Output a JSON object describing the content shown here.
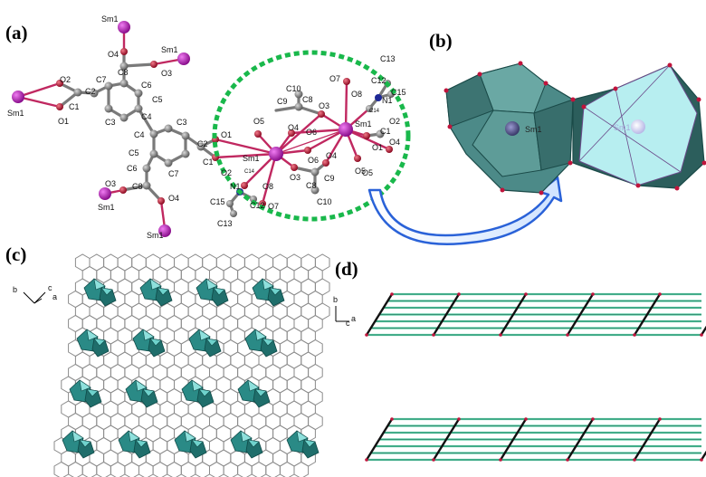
{
  "panels": {
    "a": "(a)",
    "b": "(b)",
    "c": "(c)",
    "d": "(d)"
  },
  "panel_a": {
    "atoms": {
      "sm_top": "Sm1",
      "sm_top_right": "Sm1",
      "sm_left": "Sm1",
      "sm_bottom_left": "Sm1",
      "sm_bottom": "Sm1",
      "sm_center_left": "Sm1",
      "sm_center_right": "Sm1",
      "o4_top": "O4",
      "c8_top": "C8",
      "o3_top": "O3",
      "c7_top": "C7",
      "c6_top": "C6",
      "o2_left": "O2",
      "c2_left": "C2",
      "c1_left": "C1",
      "o1_left": "O1",
      "c5_top": "C5",
      "c4_top": "C4",
      "c3_top": "C3",
      "c3_mid": "C3",
      "c4_mid": "C4",
      "c2_mid": "C2",
      "c5_mid": "C5",
      "c6_mid": "C6",
      "c7_mid": "C7",
      "c8_mid": "C8",
      "o3_mid": "O3",
      "o4_mid": "O4",
      "c1_mid": "C1",
      "o1_mid": "O1",
      "o2_mid": "O2",
      "o1_center": "O1",
      "o2_center": "O2",
      "n1_left": "N1",
      "c12_left": "C12",
      "c14_left": "C14",
      "c15_left": "C15",
      "c13_left": "C13",
      "o8_left": "O8",
      "o7_left": "O7",
      "o3_center": "O3",
      "o6_center": "O6",
      "c8_center": "C8",
      "c9_center": "C9",
      "c10_center": "C10",
      "o4_center": "O4",
      "o5_center": "O5",
      "c9_upper": "C9",
      "c8_upper": "C8",
      "c10_upper": "C10",
      "o5_upper": "O5",
      "o4_upper": "O4",
      "o6_upper": "O6",
      "o3_upper": "O3",
      "o7_right": "O7",
      "o8_right": "O8",
      "c13_right": "C13",
      "c12_right": "C12",
      "c15_right": "C15",
      "n1_right": "N1",
      "c14_right": "C14",
      "o2_right": "O2",
      "c1_right": "C1",
      "o1_right": "O1",
      "o4_right": "O4",
      "o5_right": "O5"
    }
  },
  "panel_b": {
    "sm_left": "Sm1",
    "sm_right": "Sm1"
  },
  "panel_c": {
    "axis_b": "b",
    "axis_c": "c",
    "axis_a": "a"
  },
  "panel_d": {
    "axis_b": "b",
    "axis_c": "c",
    "axis_a": "a"
  },
  "colors": {
    "sm": "#b21eb4",
    "oxygen": "#c0143c",
    "carbon": "#808080",
    "nitrogen": "#1e2896",
    "polyhedron": "#2a7a78",
    "polyhedron_light": "#a8e6e8",
    "dotted_ellipse": "#19b84b",
    "arrow": "#2a62d8",
    "layer_green": "#4fc79e",
    "layer_black": "#111111"
  }
}
